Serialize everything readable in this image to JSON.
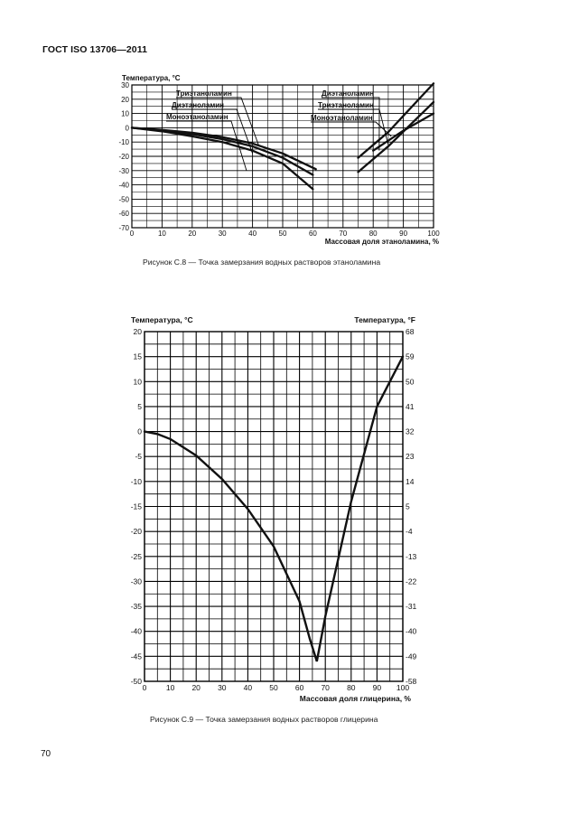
{
  "header": {
    "title": "ГОСТ ISO 13706—2011"
  },
  "chart_data": [
    {
      "type": "line",
      "caption": "Рисунок С.8 — Точка замерзания водных растворов этаноламина",
      "ylabel": "Температура, °С",
      "xlabel": "Массовая доля этаноламина, %",
      "xlim": [
        0,
        100
      ],
      "ylim": [
        -70,
        30
      ],
      "grid": true,
      "x_ticks": [
        "0",
        "10",
        "20",
        "30",
        "40",
        "50",
        "60",
        "70",
        "80",
        "90",
        "100"
      ],
      "y_ticks": [
        "30",
        "20",
        "10",
        "0",
        "-10",
        "-20",
        "-30",
        "-40",
        "-50",
        "-60",
        "-70"
      ],
      "labels_left": [
        "Триэтаноламин",
        "Диэтаноламин",
        "Моноэтаноламин"
      ],
      "labels_right": [
        "Диэтаноламин",
        "Триэтаноламин",
        "Моноэтаноламин"
      ],
      "series": [
        {
          "x": [
            0,
            10,
            20,
            30,
            40,
            50,
            60
          ],
          "y": [
            0,
            -2.5,
            -6,
            -10,
            -16,
            -25,
            -43
          ]
        },
        {
          "x": [
            0,
            10,
            20,
            30,
            40,
            50,
            60
          ],
          "y": [
            0,
            -2,
            -4.5,
            -8,
            -13,
            -21,
            -33
          ]
        },
        {
          "x": [
            0,
            10,
            20,
            30,
            40,
            50,
            61
          ],
          "y": [
            0,
            -1.5,
            -3.5,
            -6.5,
            -11,
            -18,
            -29
          ]
        },
        {
          "x": [
            75,
            85,
            100
          ],
          "y": [
            -21,
            -3,
            31
          ]
        },
        {
          "x": [
            75,
            85,
            100
          ],
          "y": [
            -31,
            -13,
            18
          ]
        },
        {
          "x": [
            80,
            90,
            100
          ],
          "y": [
            -16,
            -2,
            10
          ]
        }
      ]
    },
    {
      "type": "line",
      "caption": "Рисунок С.9 — Точка замерзания водных растворов глицерина",
      "ylabel": "Температура, °С",
      "ylabel_right": "Температура, °F",
      "xlabel": "Массовая доля глицерина, %",
      "xlim": [
        0,
        100
      ],
      "ylim": [
        -50,
        20
      ],
      "grid": true,
      "x_ticks": [
        "0",
        "10",
        "20",
        "30",
        "40",
        "50",
        "60",
        "70",
        "80",
        "90",
        "100"
      ],
      "y_ticks": [
        "20",
        "15",
        "10",
        "5",
        "0",
        "-5",
        "-10",
        "-15",
        "-20",
        "-25",
        "-30",
        "-35",
        "-40",
        "-45",
        "-50"
      ],
      "y_ticks_right": [
        "68",
        "59",
        "50",
        "41",
        "32",
        "23",
        "14",
        "5",
        "-4",
        "-13",
        "-22",
        "-31",
        "-40",
        "-49",
        "-58"
      ],
      "series": [
        {
          "x": [
            0,
            5,
            10,
            20,
            30,
            40,
            50,
            60,
            64,
            66.7,
            70,
            80,
            90,
            100
          ],
          "y": [
            0,
            -0.5,
            -1.5,
            -4.8,
            -9.5,
            -15.5,
            -23,
            -34,
            -41.5,
            -46,
            -37,
            -14,
            5,
            15
          ]
        }
      ]
    }
  ],
  "footer": {
    "page_number": "70"
  }
}
